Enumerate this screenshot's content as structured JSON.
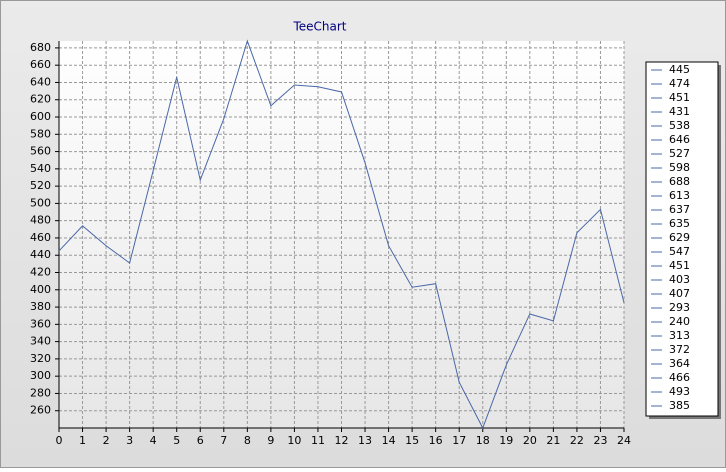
{
  "chart_data": {
    "type": "line",
    "title": "TeeChart",
    "x": [
      0,
      1,
      2,
      3,
      4,
      5,
      6,
      7,
      8,
      9,
      10,
      11,
      12,
      13,
      14,
      15,
      16,
      17,
      18,
      19,
      20,
      21,
      22,
      23,
      24
    ],
    "series": [
      {
        "color": "#4a68a8",
        "values": [
          445,
          474,
          451,
          431,
          538,
          646,
          527,
          598,
          688,
          613,
          637,
          635,
          629,
          547,
          451,
          403,
          407,
          293,
          240,
          313,
          372,
          364,
          466,
          493,
          385
        ]
      }
    ],
    "xlim": [
      0,
      24
    ],
    "xticks": [
      0,
      1,
      2,
      3,
      4,
      5,
      6,
      7,
      8,
      9,
      10,
      11,
      12,
      13,
      14,
      15,
      16,
      17,
      18,
      19,
      20,
      21,
      22,
      23,
      24
    ],
    "ylim": [
      240,
      688
    ],
    "yticks": [
      260,
      280,
      300,
      320,
      340,
      360,
      380,
      400,
      420,
      440,
      460,
      480,
      500,
      520,
      540,
      560,
      580,
      600,
      620,
      640,
      660,
      680
    ],
    "grid": true,
    "legend": "right"
  }
}
